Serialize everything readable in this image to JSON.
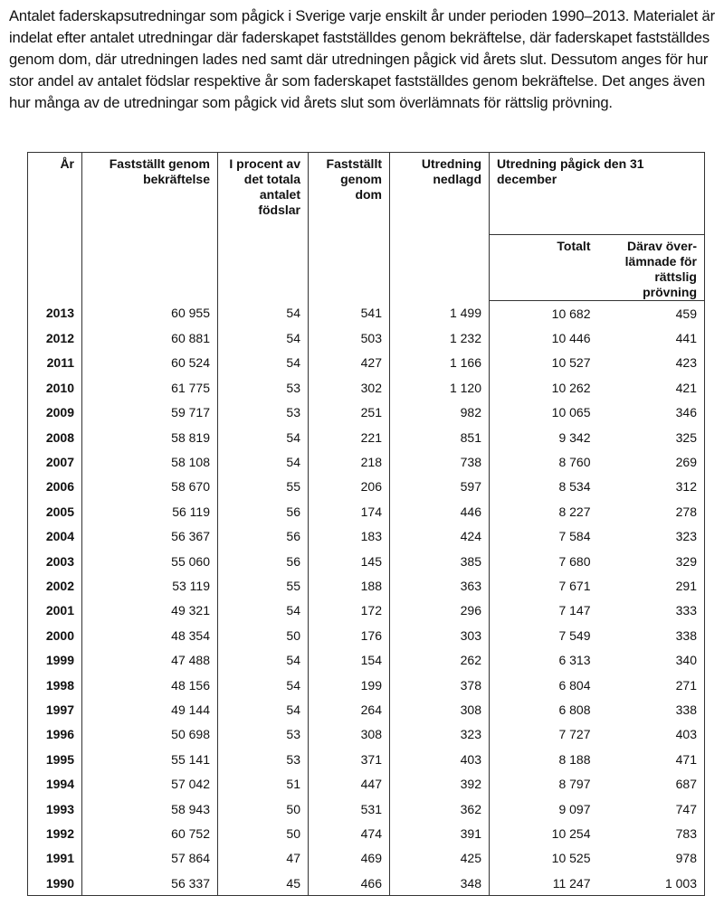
{
  "intro": "Antalet faderskapsutredningar som pågick i Sverige varje enskilt år under perioden 1990–2013. Materialet är indelat efter antalet utredningar där faderskapet fastställdes genom bekräftelse, där faderskapet fastställdes genom dom, där utredningen lades ned samt där utredningen pågick vid årets slut. Dessutom anges för hur stor andel av antalet födslar respektive år som faderskapet fastställdes genom bekräftelse. Det anges även hur många av de utredningar som pågick vid årets slut som överlämnats för rättslig prövning.",
  "table": {
    "headers": [
      "År",
      "Fastställt genom bekräftelse",
      "I procent av det totala antalet födslar",
      "Fastställt genom dom",
      "Utredning nedlagd",
      "Utredning pågick den 31 december"
    ],
    "subheaders": [
      "Totalt",
      "Därav över-lämnade för rättslig prövning"
    ],
    "rows": [
      [
        "2013",
        "60 955",
        "54",
        "541",
        "1 499",
        "10 682",
        "459"
      ],
      [
        "2012",
        "60 881",
        "54",
        "503",
        "1 232",
        "10 446",
        "441"
      ],
      [
        "2011",
        "60 524",
        "54",
        "427",
        "1 166",
        "10 527",
        "423"
      ],
      [
        "2010",
        "61 775",
        "53",
        "302",
        "1 120",
        "10 262",
        "421"
      ],
      [
        "2009",
        "59 717",
        "53",
        "251",
        "982",
        "10 065",
        "346"
      ],
      [
        "2008",
        "58 819",
        "54",
        "221",
        "851",
        "9 342",
        "325"
      ],
      [
        "2007",
        "58 108",
        "54",
        "218",
        "738",
        "8 760",
        "269"
      ],
      [
        "2006",
        "58 670",
        "55",
        "206",
        "597",
        "8 534",
        "312"
      ],
      [
        "2005",
        "56 119",
        "56",
        "174",
        "446",
        "8 227",
        "278"
      ],
      [
        "2004",
        "56 367",
        "56",
        "183",
        "424",
        "7 584",
        "323"
      ],
      [
        "2003",
        "55 060",
        "56",
        "145",
        "385",
        "7 680",
        "329"
      ],
      [
        "2002",
        "53 119",
        "55",
        "188",
        "363",
        "7 671",
        "291"
      ],
      [
        "2001",
        "49 321",
        "54",
        "172",
        "296",
        "7 147",
        "333"
      ],
      [
        "2000",
        "48 354",
        "50",
        "176",
        "303",
        "7 549",
        "338"
      ],
      [
        "1999",
        "47 488",
        "54",
        "154",
        "262",
        "6 313",
        "340"
      ],
      [
        "1998",
        "48 156",
        "54",
        "199",
        "378",
        "6 804",
        "271"
      ],
      [
        "1997",
        "49 144",
        "54",
        "264",
        "308",
        "6 808",
        "338"
      ],
      [
        "1996",
        "50 698",
        "53",
        "308",
        "323",
        "7 727",
        "403"
      ],
      [
        "1995",
        "55 141",
        "53",
        "371",
        "403",
        "8 188",
        "471"
      ],
      [
        "1994",
        "57 042",
        "51",
        "447",
        "392",
        "8 797",
        "687"
      ],
      [
        "1993",
        "58 943",
        "50",
        "531",
        "362",
        "9 097",
        "747"
      ],
      [
        "1992",
        "60 752",
        "50",
        "474",
        "391",
        "10 254",
        "783"
      ],
      [
        "1991",
        "57 864",
        "47",
        "469",
        "425",
        "10 525",
        "978"
      ],
      [
        "1990",
        "56 337",
        "45",
        "466",
        "348",
        "11 247",
        "1 003"
      ]
    ]
  }
}
